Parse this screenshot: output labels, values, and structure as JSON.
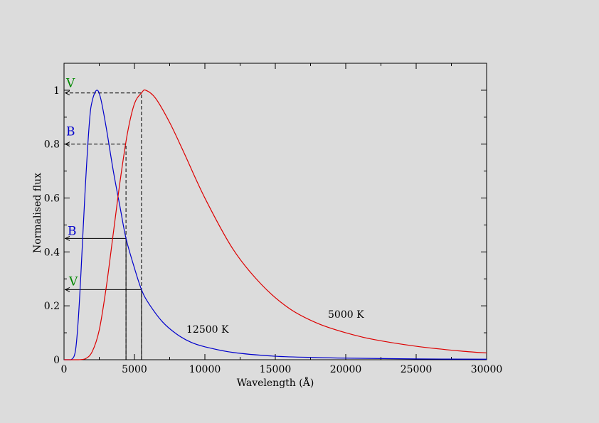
{
  "chart_data": {
    "type": "line",
    "xlabel": "Wavelength (Å)",
    "ylabel": "Normalised flux",
    "xlim": [
      0,
      30000
    ],
    "ylim": [
      0,
      1.1
    ],
    "grid": false,
    "x_ticks": [
      {
        "value": 0,
        "label": "0"
      },
      {
        "value": 5000,
        "label": "5000"
      },
      {
        "value": 10000,
        "label": "10000"
      },
      {
        "value": 15000,
        "label": "15000"
      },
      {
        "value": 20000,
        "label": "20000"
      },
      {
        "value": 25000,
        "label": "25000"
      },
      {
        "value": 30000,
        "label": "30000"
      }
    ],
    "y_ticks": [
      {
        "value": 0,
        "label": "0"
      },
      {
        "value": 0.2,
        "label": "0.2"
      },
      {
        "value": 0.4,
        "label": "0.4"
      },
      {
        "value": 0.6,
        "label": "0.6"
      },
      {
        "value": 0.8,
        "label": "0.8"
      },
      {
        "value": 1,
        "label": "1"
      }
    ],
    "series": [
      {
        "name": "12500 K",
        "color": "#0000cc",
        "x": [
          0,
          500,
          800,
          1000,
          1200,
          1500,
          1800,
          2000,
          2320,
          2600,
          3000,
          3500,
          4000,
          4400,
          5000,
          5500,
          6000,
          7000,
          8000,
          9000,
          10000,
          12000,
          15000,
          18000,
          20000,
          25000,
          30000
        ],
        "values": [
          0,
          0.0,
          0.03,
          0.14,
          0.32,
          0.63,
          0.88,
          0.96,
          1.0,
          0.97,
          0.86,
          0.7,
          0.56,
          0.45,
          0.34,
          0.26,
          0.21,
          0.14,
          0.095,
          0.065,
          0.048,
          0.027,
          0.013,
          0.008,
          0.006,
          0.003,
          0.002
        ]
      },
      {
        "name": "5000 K",
        "color": "#dd0000",
        "x": [
          0,
          1000,
          1500,
          2000,
          2500,
          3000,
          3500,
          4000,
          4500,
          5000,
          5500,
          5800,
          6500,
          7500,
          8500,
          10000,
          12000,
          14000,
          16000,
          18000,
          20000,
          22000,
          25000,
          28000,
          30000
        ],
        "values": [
          0,
          0,
          0.003,
          0.03,
          0.11,
          0.27,
          0.47,
          0.67,
          0.84,
          0.95,
          0.99,
          1.0,
          0.97,
          0.88,
          0.77,
          0.6,
          0.41,
          0.28,
          0.19,
          0.135,
          0.1,
          0.075,
          0.05,
          0.033,
          0.025
        ]
      }
    ],
    "annotations": {
      "b_wavelength": 4400,
      "v_wavelength": 5500,
      "cool_b_flux": 0.8,
      "cool_v_flux": 0.99,
      "hot_b_flux": 0.45,
      "hot_v_flux": 0.26,
      "labels": {
        "v_top": "V",
        "b_top": "B",
        "b_mid": "B",
        "v_mid": "V",
        "hot_curve": "12500 K",
        "cool_curve": "5000 K"
      },
      "label_colors": {
        "v": "#008800",
        "b": "#0000cc"
      }
    }
  }
}
